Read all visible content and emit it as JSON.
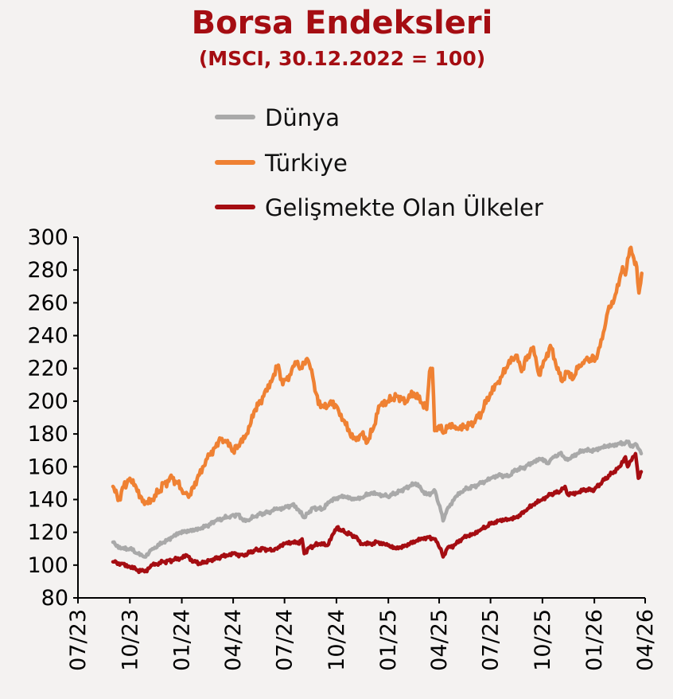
{
  "chart_data": {
    "type": "line",
    "title": "Borsa Endeksleri",
    "subtitle": "(MSCI, 30.12.2022 = 100)",
    "xlabel": "",
    "ylabel": "",
    "ylim": [
      80,
      300
    ],
    "yticks": [
      "80",
      "100",
      "120",
      "140",
      "160",
      "180",
      "200",
      "220",
      "240",
      "260",
      "280",
      "300"
    ],
    "xticks": [
      "07/23",
      "10/23",
      "01/24",
      "04/24",
      "07/24",
      "10/24",
      "01/25",
      "04/25",
      "07/25",
      "10/25",
      "01/26",
      "04/26"
    ],
    "grid": false,
    "legend_position": "top",
    "series": [
      {
        "name": "Dünya",
        "color": "#a9a9a9",
        "points": [
          [
            "2023-09-01",
            114
          ],
          [
            "2023-09-15",
            110
          ],
          [
            "2023-10-01",
            110
          ],
          [
            "2023-10-15",
            107
          ],
          [
            "2023-10-27",
            105
          ],
          [
            "2023-11-10",
            110
          ],
          [
            "2023-11-30",
            114
          ],
          [
            "2023-12-15",
            117
          ],
          [
            "2023-12-29",
            120
          ],
          [
            "2024-01-15",
            121
          ],
          [
            "2024-02-01",
            122
          ],
          [
            "2024-02-15",
            124
          ],
          [
            "2024-03-01",
            127
          ],
          [
            "2024-03-28",
            130
          ],
          [
            "2024-04-10",
            131
          ],
          [
            "2024-04-19",
            127
          ],
          [
            "2024-05-01",
            128
          ],
          [
            "2024-05-15",
            131
          ],
          [
            "2024-06-01",
            132
          ],
          [
            "2024-06-15",
            134
          ],
          [
            "2024-07-01",
            135
          ],
          [
            "2024-07-15",
            137
          ],
          [
            "2024-07-25",
            134
          ],
          [
            "2024-08-05",
            129
          ],
          [
            "2024-08-20",
            135
          ],
          [
            "2024-09-06",
            134
          ],
          [
            "2024-09-20",
            139
          ],
          [
            "2024-10-01",
            141
          ],
          [
            "2024-10-15",
            142
          ],
          [
            "2024-11-01",
            140
          ],
          [
            "2024-11-15",
            141
          ],
          [
            "2024-12-01",
            144
          ],
          [
            "2024-12-15",
            143
          ],
          [
            "2024-12-31",
            142
          ],
          [
            "2025-01-15",
            144
          ],
          [
            "2025-02-01",
            147
          ],
          [
            "2025-02-18",
            150
          ],
          [
            "2025-03-10",
            143
          ],
          [
            "2025-03-25",
            145
          ],
          [
            "2025-04-04",
            133
          ],
          [
            "2025-04-08",
            127
          ],
          [
            "2025-04-15",
            134
          ],
          [
            "2025-05-01",
            142
          ],
          [
            "2025-05-15",
            146
          ],
          [
            "2025-06-01",
            148
          ],
          [
            "2025-06-15",
            150
          ],
          [
            "2025-07-01",
            153
          ],
          [
            "2025-07-15",
            155
          ],
          [
            "2025-08-01",
            154
          ],
          [
            "2025-08-15",
            158
          ],
          [
            "2025-09-01",
            160
          ],
          [
            "2025-09-15",
            163
          ],
          [
            "2025-10-01",
            165
          ],
          [
            "2025-10-10",
            162
          ],
          [
            "2025-10-20",
            166
          ],
          [
            "2025-11-01",
            168
          ],
          [
            "2025-11-15",
            164
          ],
          [
            "2025-12-01",
            168
          ],
          [
            "2025-12-15",
            170
          ],
          [
            "2026-01-01",
            170
          ],
          [
            "2026-01-15",
            172
          ],
          [
            "2026-02-01",
            173
          ],
          [
            "2026-02-15",
            174
          ],
          [
            "2026-03-01",
            175
          ],
          [
            "2026-03-10",
            172
          ],
          [
            "2026-03-15",
            174
          ],
          [
            "2026-03-25",
            168
          ]
        ]
      },
      {
        "name": "Türkiye",
        "color": "#ef8133",
        "points": [
          [
            "2023-09-01",
            148
          ],
          [
            "2023-09-08",
            143
          ],
          [
            "2023-09-12",
            140
          ],
          [
            "2023-09-20",
            148
          ],
          [
            "2023-10-01",
            153
          ],
          [
            "2023-10-10",
            149
          ],
          [
            "2023-10-20",
            142
          ],
          [
            "2023-10-27",
            137
          ],
          [
            "2023-11-10",
            140
          ],
          [
            "2023-11-20",
            144
          ],
          [
            "2023-12-01",
            150
          ],
          [
            "2023-12-15",
            153
          ],
          [
            "2023-12-25",
            150
          ],
          [
            "2024-01-05",
            144
          ],
          [
            "2024-01-15",
            143
          ],
          [
            "2024-02-01",
            155
          ],
          [
            "2024-02-15",
            165
          ],
          [
            "2024-03-01",
            172
          ],
          [
            "2024-03-10",
            177
          ],
          [
            "2024-03-20",
            175
          ],
          [
            "2024-04-01",
            170
          ],
          [
            "2024-04-10",
            173
          ],
          [
            "2024-04-25",
            180
          ],
          [
            "2024-05-10",
            195
          ],
          [
            "2024-05-25",
            203
          ],
          [
            "2024-06-10",
            214
          ],
          [
            "2024-06-20",
            222
          ],
          [
            "2024-06-28",
            210
          ],
          [
            "2024-07-10",
            216
          ],
          [
            "2024-07-20",
            224
          ],
          [
            "2024-08-01",
            220
          ],
          [
            "2024-08-10",
            226
          ],
          [
            "2024-08-20",
            215
          ],
          [
            "2024-08-30",
            198
          ],
          [
            "2024-09-15",
            197
          ],
          [
            "2024-09-25",
            200
          ],
          [
            "2024-10-05",
            194
          ],
          [
            "2024-10-15",
            188
          ],
          [
            "2024-10-25",
            180
          ],
          [
            "2024-11-05",
            176
          ],
          [
            "2024-11-15",
            180
          ],
          [
            "2024-11-25",
            175
          ],
          [
            "2024-12-05",
            183
          ],
          [
            "2024-12-15",
            197
          ],
          [
            "2024-12-31",
            200
          ],
          [
            "2025-01-15",
            203
          ],
          [
            "2025-02-01",
            200
          ],
          [
            "2025-02-15",
            205
          ],
          [
            "2025-03-01",
            199
          ],
          [
            "2025-03-10",
            195
          ],
          [
            "2025-03-15",
            218
          ],
          [
            "2025-03-20",
            220
          ],
          [
            "2025-03-24",
            182
          ],
          [
            "2025-04-01",
            185
          ],
          [
            "2025-04-10",
            181
          ],
          [
            "2025-04-20",
            186
          ],
          [
            "2025-05-01",
            183
          ],
          [
            "2025-05-15",
            184
          ],
          [
            "2025-06-01",
            187
          ],
          [
            "2025-06-15",
            193
          ],
          [
            "2025-07-01",
            205
          ],
          [
            "2025-07-15",
            212
          ],
          [
            "2025-08-01",
            222
          ],
          [
            "2025-08-15",
            228
          ],
          [
            "2025-08-25",
            218
          ],
          [
            "2025-09-05",
            228
          ],
          [
            "2025-09-15",
            233
          ],
          [
            "2025-09-25",
            216
          ],
          [
            "2025-10-05",
            225
          ],
          [
            "2025-10-15",
            234
          ],
          [
            "2025-10-25",
            222
          ],
          [
            "2025-11-05",
            212
          ],
          [
            "2025-11-15",
            218
          ],
          [
            "2025-11-25",
            214
          ],
          [
            "2025-12-05",
            222
          ],
          [
            "2025-12-15",
            225
          ],
          [
            "2025-12-25",
            226
          ],
          [
            "2026-01-05",
            226
          ],
          [
            "2026-01-15",
            238
          ],
          [
            "2026-01-25",
            255
          ],
          [
            "2026-02-05",
            262
          ],
          [
            "2026-02-15",
            275
          ],
          [
            "2026-02-20",
            282
          ],
          [
            "2026-02-25",
            277
          ],
          [
            "2026-03-01",
            287
          ],
          [
            "2026-03-05",
            293
          ],
          [
            "2026-03-12",
            287
          ],
          [
            "2026-03-17",
            282
          ],
          [
            "2026-03-21",
            266
          ],
          [
            "2026-03-24",
            272
          ],
          [
            "2026-03-26",
            278
          ]
        ]
      },
      {
        "name": "Gelişmekte Olan Ülkeler",
        "color": "#a50d12",
        "points": [
          [
            "2023-09-01",
            102
          ],
          [
            "2023-09-15",
            101
          ],
          [
            "2023-10-01",
            99
          ],
          [
            "2023-10-15",
            97
          ],
          [
            "2023-10-27",
            96
          ],
          [
            "2023-11-10",
            100
          ],
          [
            "2023-11-30",
            102
          ],
          [
            "2023-12-15",
            103
          ],
          [
            "2023-12-29",
            104
          ],
          [
            "2024-01-10",
            106
          ],
          [
            "2024-01-22",
            102
          ],
          [
            "2024-02-05",
            101
          ],
          [
            "2024-02-20",
            103
          ],
          [
            "2024-03-10",
            105
          ],
          [
            "2024-04-01",
            107
          ],
          [
            "2024-04-19",
            106
          ],
          [
            "2024-05-10",
            109
          ],
          [
            "2024-05-25",
            110
          ],
          [
            "2024-06-10",
            109
          ],
          [
            "2024-06-20",
            111
          ],
          [
            "2024-07-01",
            113
          ],
          [
            "2024-07-15",
            114
          ],
          [
            "2024-07-25",
            113
          ],
          [
            "2024-08-01",
            116
          ],
          [
            "2024-08-05",
            107
          ],
          [
            "2024-08-15",
            111
          ],
          [
            "2024-09-01",
            113
          ],
          [
            "2024-09-15",
            112
          ],
          [
            "2024-09-25",
            119
          ],
          [
            "2024-10-02",
            123
          ],
          [
            "2024-10-15",
            120
          ],
          [
            "2024-11-01",
            118
          ],
          [
            "2024-11-15",
            113
          ],
          [
            "2024-12-01",
            113
          ],
          [
            "2024-12-15",
            114
          ],
          [
            "2024-12-31",
            112
          ],
          [
            "2025-01-15",
            110
          ],
          [
            "2025-02-01",
            112
          ],
          [
            "2025-02-20",
            115
          ],
          [
            "2025-03-10",
            117
          ],
          [
            "2025-03-25",
            116
          ],
          [
            "2025-04-04",
            110
          ],
          [
            "2025-04-08",
            105
          ],
          [
            "2025-04-15",
            110
          ],
          [
            "2025-05-01",
            113
          ],
          [
            "2025-05-15",
            117
          ],
          [
            "2025-06-01",
            119
          ],
          [
            "2025-06-15",
            122
          ],
          [
            "2025-07-01",
            125
          ],
          [
            "2025-07-15",
            127
          ],
          [
            "2025-08-01",
            128
          ],
          [
            "2025-08-15",
            129
          ],
          [
            "2025-09-01",
            133
          ],
          [
            "2025-09-15",
            137
          ],
          [
            "2025-10-01",
            140
          ],
          [
            "2025-10-15",
            143
          ],
          [
            "2025-11-01",
            145
          ],
          [
            "2025-11-10",
            148
          ],
          [
            "2025-11-15",
            143
          ],
          [
            "2025-12-01",
            144
          ],
          [
            "2025-12-15",
            146
          ],
          [
            "2026-01-01",
            146
          ],
          [
            "2026-01-15",
            151
          ],
          [
            "2026-02-01",
            156
          ],
          [
            "2026-02-15",
            160
          ],
          [
            "2026-02-25",
            166
          ],
          [
            "2026-03-01",
            160
          ],
          [
            "2026-03-10",
            166
          ],
          [
            "2026-03-15",
            168
          ],
          [
            "2026-03-20",
            153
          ],
          [
            "2026-03-25",
            157
          ]
        ]
      }
    ]
  }
}
